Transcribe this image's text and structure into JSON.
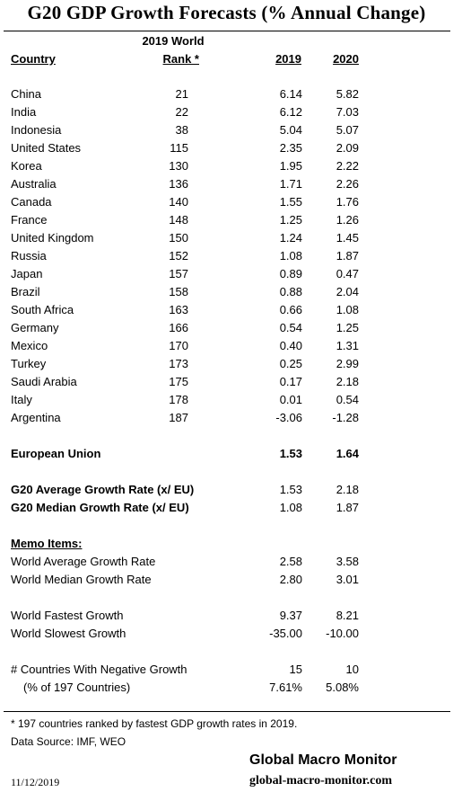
{
  "title": "G20 GDP Growth Forecasts  (% Annual Change)",
  "headers": {
    "country": "Country",
    "rank_line1": "2019 World",
    "rank_line2": "Rank *",
    "y2019": "2019",
    "y2020": "2020"
  },
  "countries": [
    {
      "name": "China",
      "rank": "21",
      "v2019": "6.14",
      "v2020": "5.82"
    },
    {
      "name": "India",
      "rank": "22",
      "v2019": "6.12",
      "v2020": "7.03"
    },
    {
      "name": "Indonesia",
      "rank": "38",
      "v2019": "5.04",
      "v2020": "5.07"
    },
    {
      "name": "United States",
      "rank": "115",
      "v2019": "2.35",
      "v2020": "2.09"
    },
    {
      "name": "Korea",
      "rank": "130",
      "v2019": "1.95",
      "v2020": "2.22"
    },
    {
      "name": "Australia",
      "rank": "136",
      "v2019": "1.71",
      "v2020": "2.26"
    },
    {
      "name": "Canada",
      "rank": "140",
      "v2019": "1.55",
      "v2020": "1.76"
    },
    {
      "name": "France",
      "rank": "148",
      "v2019": "1.25",
      "v2020": "1.26"
    },
    {
      "name": "United Kingdom",
      "rank": "150",
      "v2019": "1.24",
      "v2020": "1.45"
    },
    {
      "name": "Russia",
      "rank": "152",
      "v2019": "1.08",
      "v2020": "1.87"
    },
    {
      "name": "Japan",
      "rank": "157",
      "v2019": "0.89",
      "v2020": "0.47"
    },
    {
      "name": "Brazil",
      "rank": "158",
      "v2019": "0.88",
      "v2020": "2.04"
    },
    {
      "name": "South Africa",
      "rank": "163",
      "v2019": "0.66",
      "v2020": "1.08"
    },
    {
      "name": "Germany",
      "rank": "166",
      "v2019": "0.54",
      "v2020": "1.25"
    },
    {
      "name": "Mexico",
      "rank": "170",
      "v2019": "0.40",
      "v2020": "1.31"
    },
    {
      "name": "Turkey",
      "rank": "173",
      "v2019": "0.25",
      "v2020": "2.99"
    },
    {
      "name": "Saudi Arabia",
      "rank": "175",
      "v2019": "0.17",
      "v2020": "2.18"
    },
    {
      "name": "Italy",
      "rank": "178",
      "v2019": "0.01",
      "v2020": "0.54"
    },
    {
      "name": "Argentina",
      "rank": "187",
      "v2019": "-3.06",
      "v2020": "-1.28"
    }
  ],
  "eu": {
    "name": "European Union",
    "v2019": "1.53",
    "v2020": "1.64"
  },
  "g20_avg": {
    "name": "G20 Average Growth Rate (x/ EU)",
    "v2019": "1.53",
    "v2020": "2.18"
  },
  "g20_median": {
    "name": "G20 Median Growth Rate (x/ EU)",
    "v2019": "1.08",
    "v2020": "1.87"
  },
  "memo": {
    "title": "Memo Items:",
    "world_avg": {
      "name": "World Average Growth Rate",
      "v2019": "2.58",
      "v2020": "3.58"
    },
    "world_median": {
      "name": "World Median Growth Rate",
      "v2019": "2.80",
      "v2020": "3.01"
    },
    "world_fastest": {
      "name": "World Fastest Growth",
      "v2019": "9.37",
      "v2020": "8.21"
    },
    "world_slowest": {
      "name": "World Slowest Growth",
      "v2019": "-35.00",
      "v2020": "-10.00"
    },
    "neg_count": {
      "name": "# Countries With Negative Growth",
      "v2019": "15",
      "v2020": "10"
    },
    "neg_pct": {
      "name": "(% of 197 Countries)",
      "v2019": "7.61%",
      "v2020": "5.08%"
    }
  },
  "footnote": "* 197 countries ranked by fastest GDP growth rates in 2019.",
  "source": "Data Source:  IMF, WEO",
  "brand": "Global Macro Monitor",
  "brand_url": "global-macro-monitor.com",
  "date": "11/12/2019"
}
